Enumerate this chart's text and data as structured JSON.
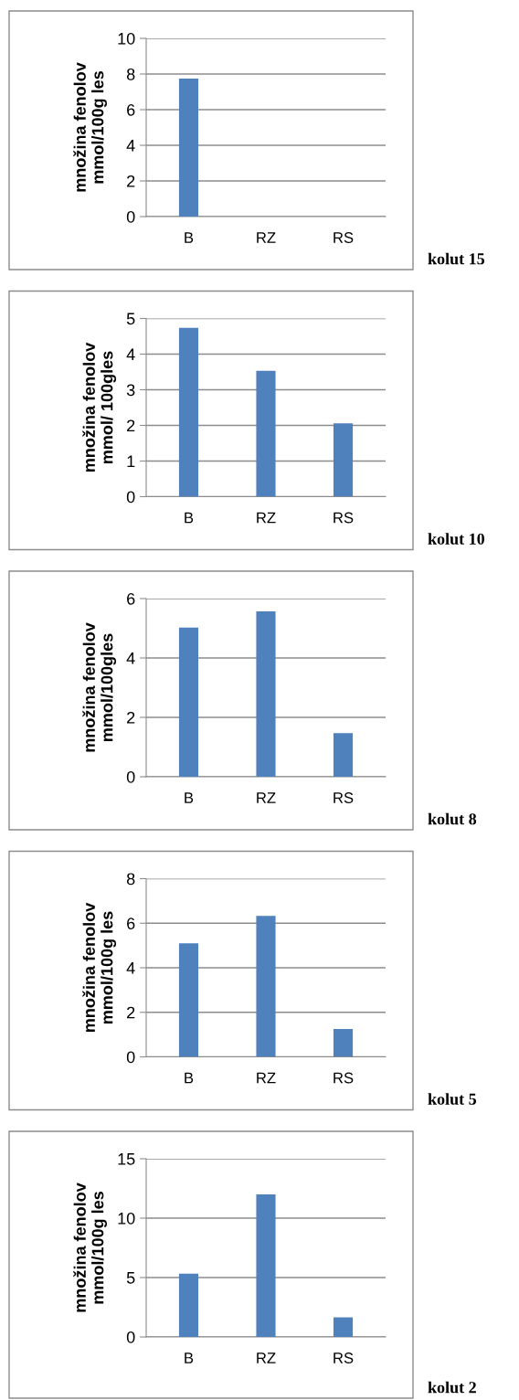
{
  "chart_data": [
    {
      "type": "bar",
      "annotations": [
        "kolut 15"
      ],
      "ylabel": "množina fenolov\nmmol/100g les",
      "categories": [
        "B",
        "RZ",
        "RS"
      ],
      "values": [
        7.75,
        0,
        0
      ],
      "color": "#4f81bd",
      "ylim": [
        0,
        10
      ],
      "yticks": [
        0,
        2,
        4,
        6,
        8,
        10
      ],
      "grid": "y"
    },
    {
      "type": "bar",
      "annotations": [
        "kolut 10"
      ],
      "ylabel": "množina fenolov\nmmol/ 100gles",
      "categories": [
        "B",
        "RZ",
        "RS"
      ],
      "values": [
        4.74,
        3.53,
        2.06
      ],
      "color": "#4f81bd",
      "ylim": [
        0,
        5
      ],
      "yticks": [
        0,
        1,
        2,
        3,
        4,
        5
      ],
      "grid": "y"
    },
    {
      "type": "bar",
      "annotations": [
        "kolut 8"
      ],
      "ylabel": "množina fenolov\nmmol/100gles",
      "categories": [
        "B",
        "RZ",
        "RS"
      ],
      "values": [
        5.02,
        5.57,
        1.47
      ],
      "color": "#4f81bd",
      "ylim": [
        0,
        6
      ],
      "yticks": [
        0,
        2,
        4,
        6
      ],
      "grid": "y"
    },
    {
      "type": "bar",
      "annotations": [
        "kolut 5"
      ],
      "ylabel": "množina fenolov\nmmol/100g les",
      "categories": [
        "B",
        "RZ",
        "RS"
      ],
      "values": [
        5.1,
        6.33,
        1.25
      ],
      "color": "#4f81bd",
      "ylim": [
        0,
        8
      ],
      "yticks": [
        0,
        2,
        4,
        6,
        8
      ],
      "grid": "y"
    },
    {
      "type": "bar",
      "annotations": [
        "kolut 2"
      ],
      "ylabel": "množina fenolov\nmmol/100g les",
      "categories": [
        "B",
        "RZ",
        "RS"
      ],
      "values": [
        5.33,
        12.0,
        1.65
      ],
      "color": "#4f81bd",
      "ylim": [
        0,
        15
      ],
      "yticks": [
        0,
        5,
        10,
        15
      ],
      "grid": "y"
    }
  ]
}
